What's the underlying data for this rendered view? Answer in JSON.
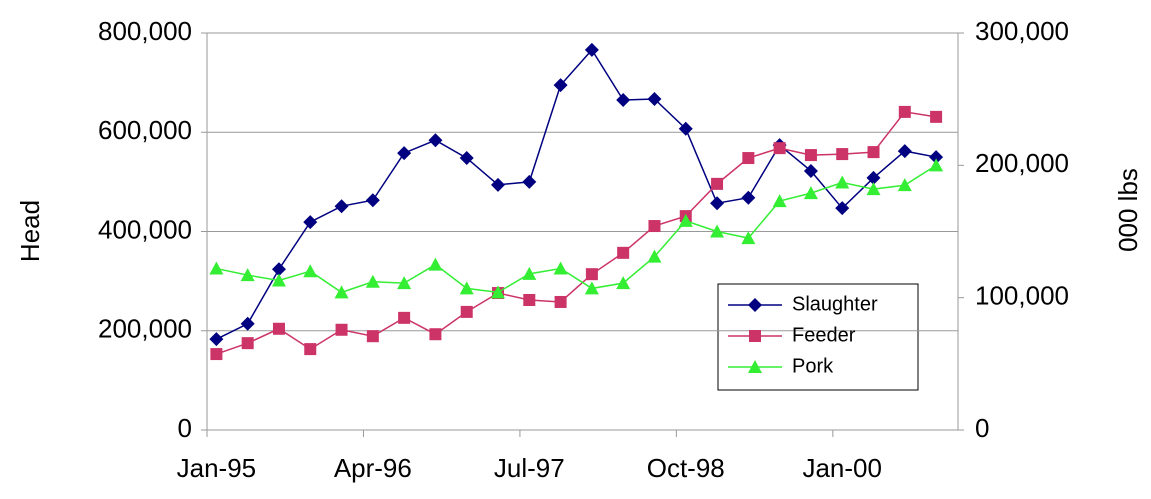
{
  "chart_data": {
    "type": "line",
    "y_label": "Head",
    "y2_label": "000 lbs",
    "categories": [
      "Jan-95",
      null,
      null,
      null,
      null,
      "Apr-96",
      null,
      null,
      null,
      null,
      "Jul-97",
      null,
      null,
      null,
      null,
      "Oct-98",
      null,
      null,
      null,
      null,
      "Jan-00",
      null,
      null,
      null
    ],
    "ylim": [
      0,
      800000
    ],
    "yticks": [
      {
        "value": 0,
        "label": "0"
      },
      {
        "value": 200000,
        "label": "200,000"
      },
      {
        "value": 400000,
        "label": "400,000"
      },
      {
        "value": 600000,
        "label": "600,000"
      },
      {
        "value": 800000,
        "label": "800,000"
      }
    ],
    "y2lim": [
      0,
      300000
    ],
    "y2ticks": [
      {
        "value": 0,
        "label": "0"
      },
      {
        "value": 100000,
        "label": "100,000"
      },
      {
        "value": 200000,
        "label": "200,000"
      },
      {
        "value": 300000,
        "label": "300,000"
      }
    ],
    "grid": true,
    "legend": "lower right",
    "series": [
      {
        "name": "Slaughter",
        "color": "#000080",
        "marker": "diamond",
        "values": [
          183000,
          214000,
          324000,
          419000,
          451000,
          463000,
          558000,
          584000,
          548000,
          494000,
          500000,
          695000,
          766000,
          665000,
          667000,
          607000,
          457000,
          468000,
          574000,
          522000,
          447000,
          508000,
          562000,
          550000
        ]
      },
      {
        "name": "Feeder",
        "color": "#cc3366",
        "marker": "square",
        "values": [
          153000,
          175000,
          204000,
          163000,
          202000,
          189000,
          226000,
          193000,
          238000,
          276000,
          262000,
          258000,
          314000,
          357000,
          411000,
          431000,
          496000,
          548000,
          568000,
          554000,
          556000,
          560000,
          641000,
          631000
        ]
      },
      {
        "name": "Pork",
        "color": "#33ee33",
        "marker": "triangle",
        "axis": "y2",
        "values": [
          122000,
          117000,
          113000,
          120000,
          104000,
          112000,
          111000,
          125000,
          107000,
          104000,
          118000,
          122000,
          107000,
          111000,
          131000,
          158000,
          150000,
          145000,
          173000,
          179000,
          187000,
          182000,
          185000,
          200000
        ]
      }
    ]
  }
}
